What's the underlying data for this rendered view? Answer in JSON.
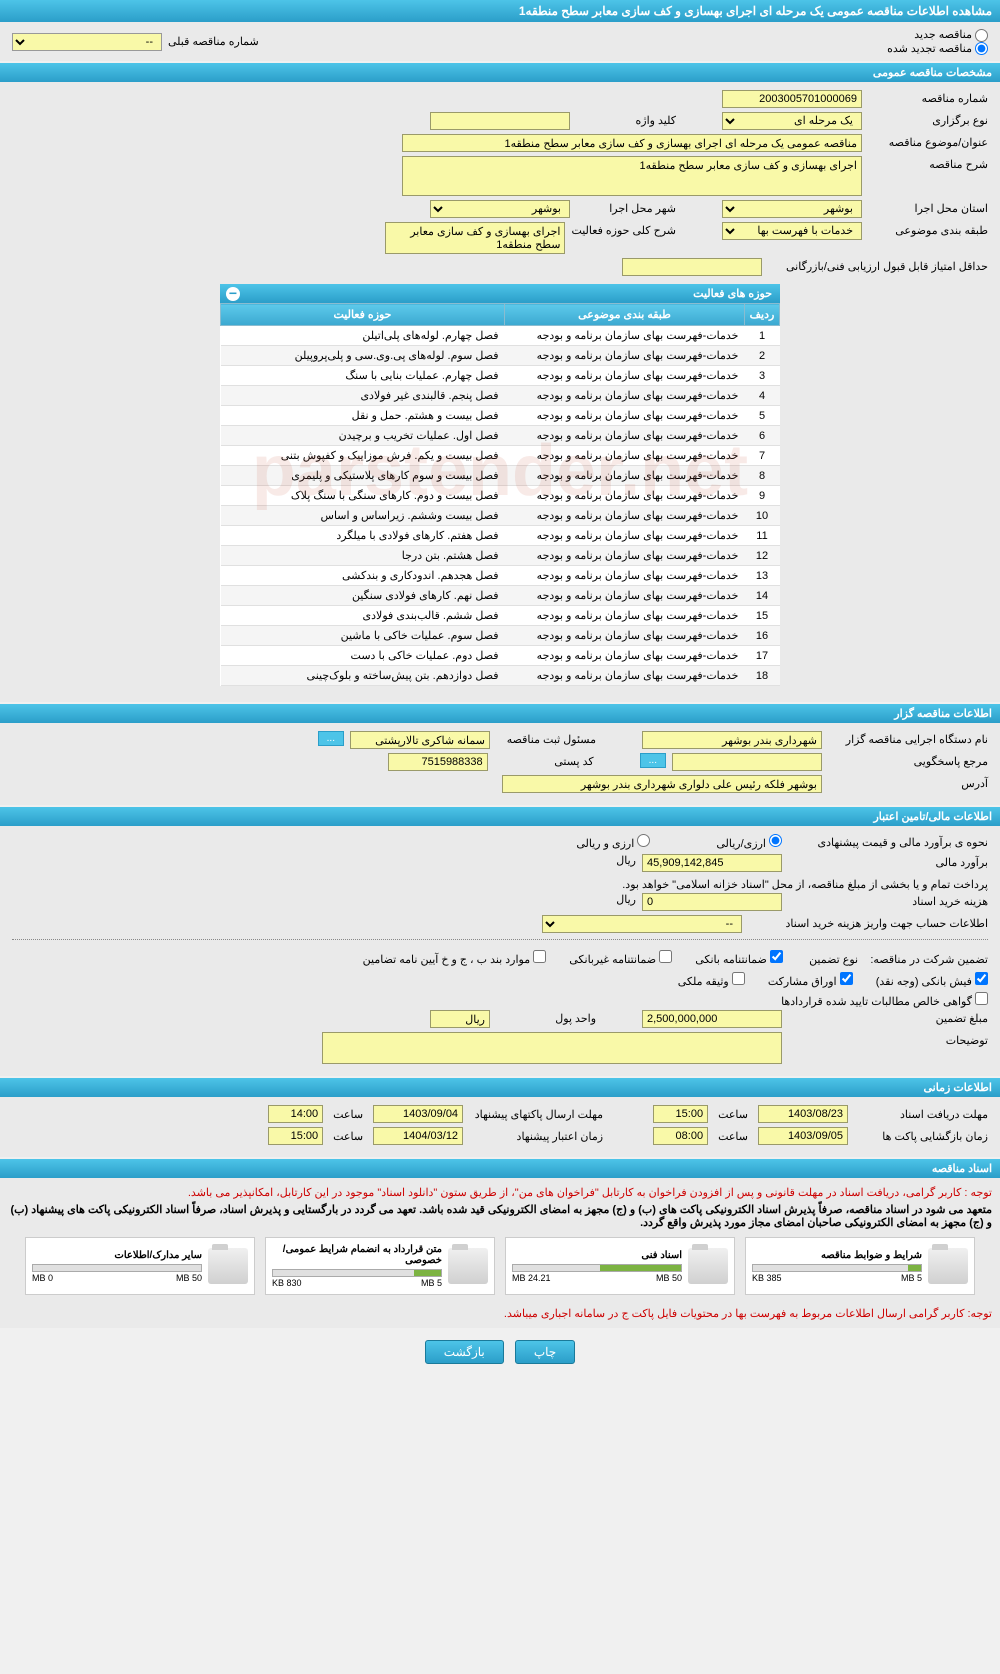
{
  "page_title": "مشاهده اطلاعات مناقصه عمومی یک مرحله ای اجرای بهسازی و کف سازی معابر سطح منطقه1",
  "radio": {
    "new_tender": "مناقصه جدید",
    "renewed_tender": "مناقصه تجدید شده",
    "prev_label": "شماره مناقصه قبلی",
    "prev_value": "--"
  },
  "sections": {
    "general": "مشخصات مناقصه عمومی",
    "organizer": "اطلاعات مناقصه گزار",
    "financial": "اطلاعات مالی/تامین اعتبار",
    "time": "اطلاعات زمانی",
    "docs": "اسناد مناقصه"
  },
  "general": {
    "tender_no_label": "شماره مناقصه",
    "tender_no": "2003005701000069",
    "type_label": "نوع برگزاری",
    "type": "یک مرحله ای",
    "keyword_label": "کلید واژه",
    "keyword": "",
    "subject_label": "عنوان/موضوع مناقصه",
    "subject": "مناقصه عمومی یک مرحله ای اجرای بهسازی و کف سازی معابر سطح منطقه1",
    "desc_label": "شرح مناقصه",
    "desc": "اجرای بهسازی و کف سازی معابر سطح منطقه1",
    "province_label": "استان محل اجرا",
    "province": "بوشهر",
    "city_label": "شهر محل اجرا",
    "city": "بوشهر",
    "category_label": "طبقه بندی موضوعی",
    "category": "خدمات با فهرست بها",
    "activity_desc_label": "شرح کلی حوزه فعالیت",
    "activity_desc": "اجرای بهسازی و کف سازی معابر سطح منطقه1",
    "min_score_label": "حداقل امتیاز قابل قبول ارزیابی فنی/بازرگانی",
    "min_score": ""
  },
  "activity_table": {
    "title": "حوزه های فعالیت",
    "cols": {
      "row": "ردیف",
      "cat": "طبقه بندی موضوعی",
      "field": "حوزه فعالیت"
    },
    "cat_common": "خدمات-فهرست بهای سازمان برنامه و بودجه",
    "rows": [
      {
        "n": "1",
        "field": "فصل چهارم. لوله‌های پلی‌اتیلن"
      },
      {
        "n": "2",
        "field": "فصل سوم. لوله‌های پی.وی.سی و پلی‌پروپیلن"
      },
      {
        "n": "3",
        "field": "فصل چهارم. عملیات بنایی با سنگ"
      },
      {
        "n": "4",
        "field": "فصل پنجم. قالبندی غیر فولادی"
      },
      {
        "n": "5",
        "field": "فصل بیست و هشتم. حمل و نقل"
      },
      {
        "n": "6",
        "field": "فصل اول. عملیات تخریب و برچیدن"
      },
      {
        "n": "7",
        "field": "فصل بیست و یکم. فرش موزاییک و کفپوش بتنی"
      },
      {
        "n": "8",
        "field": "فصل بیست و سوم کارهای پلاستیکی و پلیمری"
      },
      {
        "n": "9",
        "field": "فصل بیست و دوم. کارهای سنگی با سنگ پلاک"
      },
      {
        "n": "10",
        "field": "فصل بیست وششم. زیراساس و اساس"
      },
      {
        "n": "11",
        "field": "فصل هفتم. کارهای فولادی با میلگرد"
      },
      {
        "n": "12",
        "field": "فصل هشتم. بتن درجا"
      },
      {
        "n": "13",
        "field": "فصل هجدهم. اندودکاری و بندکشی"
      },
      {
        "n": "14",
        "field": "فصل نهم. کارهای فولادی سنگین"
      },
      {
        "n": "15",
        "field": "فصل ششم. قالب‌بندی فولادی"
      },
      {
        "n": "16",
        "field": "فصل سوم. عملیات خاکی با ماشین"
      },
      {
        "n": "17",
        "field": "فصل دوم. عملیات خاکی با دست"
      },
      {
        "n": "18",
        "field": "فصل دوازدهم. بتن پیش‌ساخته و بلوک‌چینی"
      }
    ]
  },
  "organizer": {
    "org_label": "نام دستگاه اجرایی مناقصه گزار",
    "org": "شهرداری بندر بوشهر",
    "reg_label": "مسئول ثبت مناقصه",
    "reg": "سمانه شاکری تالارپشتی",
    "resp_label": "مرجع پاسخگویی",
    "resp": "",
    "lookup_btn": "...",
    "postal_label": "کد پستی",
    "postal": "7515988338",
    "addr_label": "آدرس",
    "addr": "بوشهر فلکه رئیس علی دلواری شهرداری بندر بوشهر"
  },
  "financial": {
    "est_method_label": "نحوه ی برآورد مالی و قیمت پیشنهادی",
    "riyal_opt": "ارزی/ریالی",
    "foreign_opt": "ارزی و ریالی",
    "est_label": "برآورد مالی",
    "est_value": "45,909,142,845",
    "currency": "ریال",
    "payment_note": "پرداخت تمام و یا بخشی از مبلغ مناقصه، از محل \"اسناد خزانه اسلامی\" خواهد بود.",
    "doc_cost_label": "هزینه خرید اسناد",
    "doc_cost": "0",
    "account_label": "اطلاعات حساب جهت واریز هزینه خرید اسناد",
    "account": "--",
    "guarantee_label": "تضمین شرکت در مناقصه:",
    "g_type_label": "نوع تضمین",
    "g1": "ضمانتنامه بانکی",
    "g2": "ضمانتنامه غیربانکی",
    "g3": "موارد بند ب ، ج و خ آیین نامه تضامین",
    "g4": "فیش بانکی (وجه نقد)",
    "g5": "اوراق مشارکت",
    "g6": "وثیقه ملکی",
    "g7": "گواهی خالص مطالبات تایید شده قراردادها",
    "g_amount_label": "مبلغ تضمین",
    "g_amount": "2,500,000,000",
    "g_unit_label": "واحد پول",
    "g_unit": "ریال",
    "notes_label": "توضیحات",
    "notes": ""
  },
  "time": {
    "receive_label": "مهلت دریافت اسناد",
    "receive_date": "1403/08/23",
    "time_label": "ساعت",
    "receive_time": "15:00",
    "envelope_send_label": "مهلت ارسال پاکتهای پیشنهاد",
    "envelope_send_date": "1403/09/04",
    "envelope_send_time": "14:00",
    "open_label": "زمان بازگشایی پاکت ها",
    "open_date": "1403/09/05",
    "open_time": "08:00",
    "validity_label": "زمان اعتبار پیشنهاد",
    "validity_date": "1404/03/12",
    "validity_time": "15:00"
  },
  "docs": {
    "note1": "توجه : کاربر گرامی، دریافت اسناد در مهلت قانونی و پس از افزودن فراخوان به کارتابل \"فراخوان های من\"، از طریق ستون \"دانلود اسناد\" موجود در این کارتابل، امکانپذیر می باشد.",
    "note2": "متعهد می شود در اسناد مناقصه، صرفاً پذیرش اسناد الکترونیکی پاکت های (ب) و (ج) مجهز به امضای الکترونیکی قید شده باشد. تعهد می گردد در بارگستایی و پذیرش اسناد، صرفاً اسناد الکترونیکی پاکت های پیشنهاد (ب) و (ج) مجهز به امضای الکترونیکی صاحبان امضای مجاز مورد پذیرش واقع گردد.",
    "files": [
      {
        "title": "شرایط و ضوابط مناقصه",
        "used": "385 KB",
        "max": "5 MB",
        "pct": 8
      },
      {
        "title": "اسناد فنی",
        "used": "24.21 MB",
        "max": "50 MB",
        "pct": 48
      },
      {
        "title": "متن قرارداد به انضمام شرایط عمومی/خصوصی",
        "used": "830 KB",
        "max": "5 MB",
        "pct": 16
      },
      {
        "title": "سایر مدارک/اطلاعات",
        "used": "0 MB",
        "max": "50 MB",
        "pct": 0
      }
    ],
    "note3": "توجه: کاربر گرامی ارسال اطلاعات مربوط به فهرست بها در محتویات فایل پاکت ج در سامانه اجباری میباشد."
  },
  "buttons": {
    "print": "چاپ",
    "back": "بازگشت"
  },
  "watermark": "parstender.net"
}
